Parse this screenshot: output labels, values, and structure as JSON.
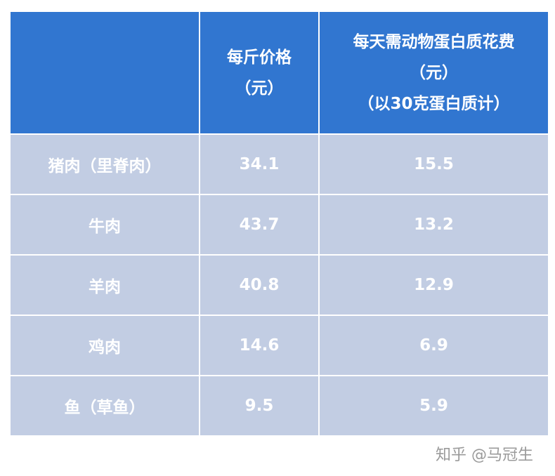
{
  "table": {
    "header": [
      [
        "每斤价格",
        "（元）"
      ],
      [
        "每天需动物蛋白质花费",
        "（元）",
        "（以30克蛋白质计）"
      ]
    ],
    "rows": [
      [
        "猪肉（里脊肉）",
        34.1,
        15.5
      ],
      [
        "牛肉",
        43.7,
        13.2
      ],
      [
        "羊肉",
        40.8,
        12.9
      ],
      [
        "鸡肉",
        14.6,
        6.9
      ],
      [
        "鱼（草鱼）",
        9.5,
        5.9
      ]
    ]
  },
  "watermark": "知乎 @马冠生"
}
